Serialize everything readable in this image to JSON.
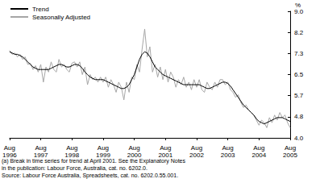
{
  "chart_data": {
    "type": "line",
    "ylabel": "%",
    "annotations": [
      "(a) Break in time series for trend at April 2001. See the Explanatory Notes",
      "in the publication: Labour Force, Australia, cat. no. 6202.0.",
      "Source: Labour Force Australia, Spreadsheets, cat. no. 6202.0.55.001."
    ],
    "categories": [
      "Aug 1996",
      null,
      null,
      null,
      null,
      null,
      null,
      null,
      null,
      null,
      null,
      null,
      "Aug 1997",
      null,
      null,
      null,
      null,
      null,
      null,
      null,
      null,
      null,
      null,
      null,
      "Aug 1998",
      null,
      null,
      null,
      null,
      null,
      null,
      null,
      null,
      null,
      null,
      null,
      "Aug 1999",
      null,
      null,
      null,
      null,
      null,
      null,
      null,
      null,
      null,
      null,
      null,
      "Aug 2000",
      null,
      null,
      null,
      null,
      null,
      null,
      null,
      null,
      null,
      null,
      null,
      "Aug 2001",
      null,
      null,
      null,
      null,
      null,
      null,
      null,
      null,
      null,
      null,
      null,
      "Aug 2002",
      null,
      null,
      null,
      null,
      null,
      null,
      null,
      null,
      null,
      null,
      null,
      "Aug 2003",
      null,
      null,
      null,
      null,
      null,
      null,
      null,
      null,
      null,
      null,
      null,
      "Aug 2004",
      null,
      null,
      null,
      null,
      null,
      null,
      null,
      null,
      null,
      null,
      null,
      "Aug 2005"
    ],
    "series": [
      {
        "name": "Trend",
        "color": "#000000",
        "values": [
          7.4,
          7.35,
          7.3,
          7.3,
          7.25,
          7.2,
          7.1,
          7.0,
          6.9,
          6.8,
          6.75,
          6.7,
          6.7,
          6.7,
          6.7,
          6.7,
          6.75,
          6.8,
          6.85,
          6.9,
          6.9,
          6.85,
          6.8,
          6.8,
          6.85,
          6.9,
          6.9,
          6.85,
          6.75,
          6.6,
          6.5,
          6.4,
          6.35,
          6.3,
          6.3,
          6.3,
          6.3,
          6.25,
          6.2,
          6.15,
          6.1,
          6.05,
          6.0,
          5.95,
          5.95,
          6.0,
          6.1,
          6.3,
          6.5,
          6.8,
          7.1,
          7.3,
          7.4,
          7.35,
          7.2,
          7.0,
          6.8,
          6.7,
          6.6,
          6.5,
          6.45,
          6.4,
          6.35,
          6.3,
          6.25,
          6.2,
          6.15,
          6.1,
          6.1,
          6.1,
          6.1,
          6.1,
          6.1,
          6.1,
          6.05,
          6.0,
          5.95,
          5.95,
          6.0,
          6.05,
          6.1,
          6.15,
          6.2,
          6.2,
          6.15,
          6.05,
          5.9,
          5.75,
          5.6,
          5.45,
          5.3,
          5.2,
          5.1,
          5.0,
          4.9,
          4.75,
          4.65,
          4.6,
          4.55,
          4.6,
          4.65,
          4.7,
          4.75,
          4.8,
          4.8,
          4.8,
          4.75,
          4.7,
          4.65
        ]
      },
      {
        "name": "Seasonally Adjusted",
        "color": "#a6a6a6",
        "values": [
          7.45,
          7.3,
          7.35,
          7.2,
          7.3,
          7.1,
          7.2,
          6.9,
          6.95,
          6.7,
          6.85,
          6.6,
          6.9,
          6.2,
          6.8,
          6.6,
          7.0,
          6.7,
          6.6,
          7.1,
          6.8,
          6.9,
          6.7,
          6.6,
          6.95,
          7.0,
          6.8,
          7.0,
          6.5,
          6.8,
          6.1,
          6.5,
          6.3,
          6.4,
          6.2,
          6.4,
          6.2,
          6.4,
          6.0,
          6.3,
          6.1,
          5.8,
          6.2,
          6.0,
          5.5,
          6.2,
          5.8,
          6.4,
          6.3,
          6.9,
          6.6,
          7.5,
          8.3,
          7.2,
          7.6,
          6.6,
          6.9,
          6.4,
          6.8,
          6.3,
          6.7,
          6.2,
          6.6,
          6.4,
          6.0,
          6.3,
          6.1,
          6.4,
          6.0,
          6.2,
          5.9,
          6.3,
          6.0,
          6.3,
          5.9,
          5.8,
          6.2,
          6.0,
          5.9,
          6.2,
          6.0,
          6.3,
          6.3,
          6.1,
          6.2,
          5.9,
          5.8,
          5.6,
          5.7,
          5.4,
          5.2,
          5.3,
          5.1,
          5.0,
          4.9,
          4.7,
          4.5,
          4.7,
          4.6,
          4.4,
          4.8,
          4.6,
          4.9,
          4.7,
          5.0,
          4.8,
          4.9,
          4.6,
          4.4
        ]
      }
    ],
    "ylim": [
      4,
      9
    ],
    "yticks": [
      {
        "value": 4,
        "label": "4.0"
      },
      {
        "value": 4.83,
        "label": "4.8"
      },
      {
        "value": 5.67,
        "label": "5.7"
      },
      {
        "value": 6.5,
        "label": "6.5"
      },
      {
        "value": 7.33,
        "label": "7.3"
      },
      {
        "value": 8.17,
        "label": "8.2"
      },
      {
        "value": 9,
        "label": "9.0"
      }
    ],
    "grid": false,
    "legend": "upper left"
  }
}
